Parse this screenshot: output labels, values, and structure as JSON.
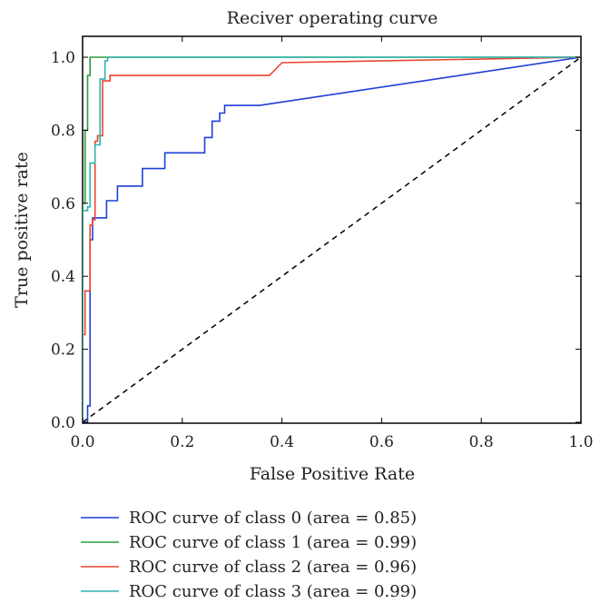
{
  "chart_data": {
    "type": "line",
    "title": "Reciver operating curve",
    "xlabel": "False Positive Rate",
    "ylabel": "True positive rate",
    "xlim": [
      0.0,
      1.0
    ],
    "ylim": [
      0.0,
      1.05
    ],
    "xticks": [
      "0.0",
      "0.2",
      "0.4",
      "0.6",
      "0.8",
      "1.0"
    ],
    "yticks": [
      "0.0",
      "0.2",
      "0.4",
      "0.6",
      "0.8",
      "1.0"
    ],
    "grid": false,
    "legend_position": "below",
    "diagonal": {
      "style": "dashed",
      "color": "#000000",
      "x": [
        0,
        1
      ],
      "y": [
        0,
        1
      ]
    },
    "series": [
      {
        "name": "ROC curve of class 0 (area = 0.85)",
        "color": "#1f3fd6",
        "x": [
          0.0,
          0.01,
          0.01,
          0.015,
          0.015,
          0.02,
          0.02,
          0.048,
          0.048,
          0.07,
          0.07,
          0.12,
          0.12,
          0.165,
          0.165,
          0.245,
          0.245,
          0.26,
          0.26,
          0.275,
          0.275,
          0.285,
          0.285,
          0.355,
          1.0
        ],
        "y": [
          0.0,
          0.0,
          0.045,
          0.045,
          0.5,
          0.5,
          0.56,
          0.56,
          0.607,
          0.607,
          0.647,
          0.647,
          0.695,
          0.695,
          0.738,
          0.738,
          0.78,
          0.78,
          0.825,
          0.825,
          0.847,
          0.847,
          0.868,
          0.868,
          1.0
        ]
      },
      {
        "name": "ROC curve of class 1 (area = 0.99)",
        "color": "#2a9d3a",
        "x": [
          0.0,
          0.0,
          0.005,
          0.005,
          0.01,
          0.01,
          0.015,
          0.015,
          1.0
        ],
        "y": [
          0.0,
          0.6,
          0.6,
          0.8,
          0.8,
          0.95,
          0.95,
          1.0,
          1.0
        ]
      },
      {
        "name": "ROC curve of class 2 (area = 0.96)",
        "color": "#e8452d",
        "x": [
          0.0,
          0.0,
          0.005,
          0.005,
          0.015,
          0.015,
          0.02,
          0.02,
          0.025,
          0.025,
          0.03,
          0.03,
          0.04,
          0.04,
          0.055,
          0.055,
          0.375,
          0.4,
          1.0
        ],
        "y": [
          0.0,
          0.24,
          0.24,
          0.36,
          0.36,
          0.54,
          0.54,
          0.555,
          0.555,
          0.77,
          0.77,
          0.785,
          0.785,
          0.935,
          0.935,
          0.95,
          0.95,
          0.985,
          1.0
        ]
      },
      {
        "name": "ROC curve of class 3 (area = 0.99)",
        "color": "#2fb3b0",
        "x": [
          0.0,
          0.0,
          0.01,
          0.01,
          0.015,
          0.015,
          0.025,
          0.025,
          0.035,
          0.035,
          0.045,
          0.045,
          0.05,
          0.05,
          1.0
        ],
        "y": [
          0.0,
          0.58,
          0.58,
          0.59,
          0.59,
          0.71,
          0.71,
          0.76,
          0.76,
          0.94,
          0.94,
          0.99,
          0.99,
          1.0,
          1.0
        ]
      }
    ]
  }
}
